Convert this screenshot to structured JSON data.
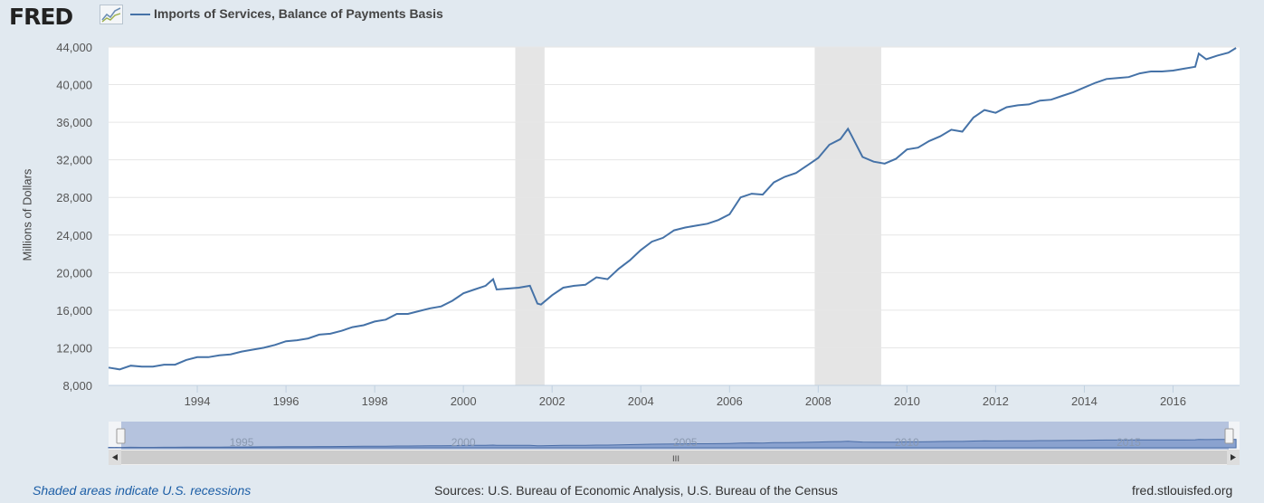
{
  "header": {
    "logo_text": "FRED",
    "logo_mark": "trend-graph-icon",
    "legend_label": "Imports of Services, Balance of Payments Basis",
    "series_color": "#4572a7"
  },
  "footer": {
    "recession_note": "Shaded areas indicate U.S. recessions",
    "sources": "Sources: U.S. Bureau of Economic Analysis, U.S. Bureau of the Census",
    "site": "fred.stlouisfed.org"
  },
  "navigator": {
    "year_labels": [
      "1995",
      "2000",
      "2005",
      "2010",
      "2015"
    ],
    "scroll_thumb_label": "III"
  },
  "chart_data": {
    "type": "line",
    "ylabel": "Millions of Dollars",
    "ylim": [
      8000,
      44000
    ],
    "xlim": [
      1992.0,
      2017.5
    ],
    "y_ticks": [
      "8,000",
      "12,000",
      "16,000",
      "20,000",
      "24,000",
      "28,000",
      "32,000",
      "36,000",
      "40,000",
      "44,000"
    ],
    "y_tick_values": [
      8000,
      12000,
      16000,
      20000,
      24000,
      28000,
      32000,
      36000,
      40000,
      44000
    ],
    "x_ticks": [
      "1994",
      "1996",
      "1998",
      "2000",
      "2002",
      "2004",
      "2006",
      "2008",
      "2010",
      "2012",
      "2014",
      "2016"
    ],
    "x_tick_values": [
      1994,
      1996,
      1998,
      2000,
      2002,
      2004,
      2006,
      2008,
      2010,
      2012,
      2014,
      2016
    ],
    "grid": true,
    "recessions": [
      [
        2001.17,
        2001.83
      ],
      [
        2007.92,
        2009.42
      ]
    ],
    "series": [
      {
        "color": "#4572a7",
        "x": [
          1992.0,
          1992.25,
          1992.5,
          1992.75,
          1993.0,
          1993.25,
          1993.5,
          1993.75,
          1994.0,
          1994.25,
          1994.5,
          1994.75,
          1995.0,
          1995.25,
          1995.5,
          1995.75,
          1996.0,
          1996.25,
          1996.5,
          1996.75,
          1997.0,
          1997.25,
          1997.5,
          1997.75,
          1998.0,
          1998.25,
          1998.5,
          1998.75,
          1999.0,
          1999.25,
          1999.5,
          1999.75,
          2000.0,
          2000.25,
          2000.5,
          2000.67,
          2000.75,
          2001.0,
          2001.25,
          2001.5,
          2001.67,
          2001.75,
          2002.0,
          2002.25,
          2002.5,
          2002.75,
          2003.0,
          2003.25,
          2003.5,
          2003.75,
          2004.0,
          2004.25,
          2004.5,
          2004.75,
          2005.0,
          2005.25,
          2005.5,
          2005.75,
          2006.0,
          2006.25,
          2006.5,
          2006.75,
          2007.0,
          2007.25,
          2007.5,
          2007.75,
          2008.0,
          2008.25,
          2008.5,
          2008.67,
          2008.75,
          2009.0,
          2009.25,
          2009.5,
          2009.75,
          2010.0,
          2010.25,
          2010.5,
          2010.75,
          2011.0,
          2011.25,
          2011.5,
          2011.75,
          2012.0,
          2012.25,
          2012.5,
          2012.75,
          2013.0,
          2013.25,
          2013.5,
          2013.75,
          2014.0,
          2014.25,
          2014.5,
          2014.75,
          2015.0,
          2015.25,
          2015.5,
          2015.75,
          2016.0,
          2016.25,
          2016.5,
          2016.58,
          2016.75,
          2017.0,
          2017.25,
          2017.42
        ],
        "values": [
          9900,
          9700,
          10100,
          10000,
          10000,
          10200,
          10200,
          10700,
          11000,
          11000,
          11200,
          11300,
          11600,
          11800,
          12000,
          12300,
          12700,
          12800,
          13000,
          13400,
          13500,
          13800,
          14200,
          14400,
          14800,
          15000,
          15600,
          15600,
          15900,
          16200,
          16400,
          17000,
          17800,
          18200,
          18600,
          19300,
          18200,
          18300,
          18400,
          18600,
          16700,
          16600,
          17600,
          18400,
          18600,
          18700,
          19500,
          19300,
          20400,
          21300,
          22400,
          23300,
          23700,
          24500,
          24800,
          25000,
          25200,
          25600,
          26200,
          28000,
          28400,
          28300,
          29600,
          30200,
          30600,
          31400,
          32200,
          33600,
          34200,
          35300,
          34600,
          32300,
          31800,
          31600,
          32100,
          33100,
          33300,
          34000,
          34500,
          35200,
          35000,
          36500,
          37300,
          37000,
          37600,
          37800,
          37900,
          38300,
          38400,
          38800,
          39200,
          39700,
          40200,
          40600,
          40700,
          40800,
          41200,
          41400,
          41400,
          41500,
          41700,
          41900,
          43300,
          42700,
          43100,
          43400,
          43900
        ]
      }
    ]
  }
}
